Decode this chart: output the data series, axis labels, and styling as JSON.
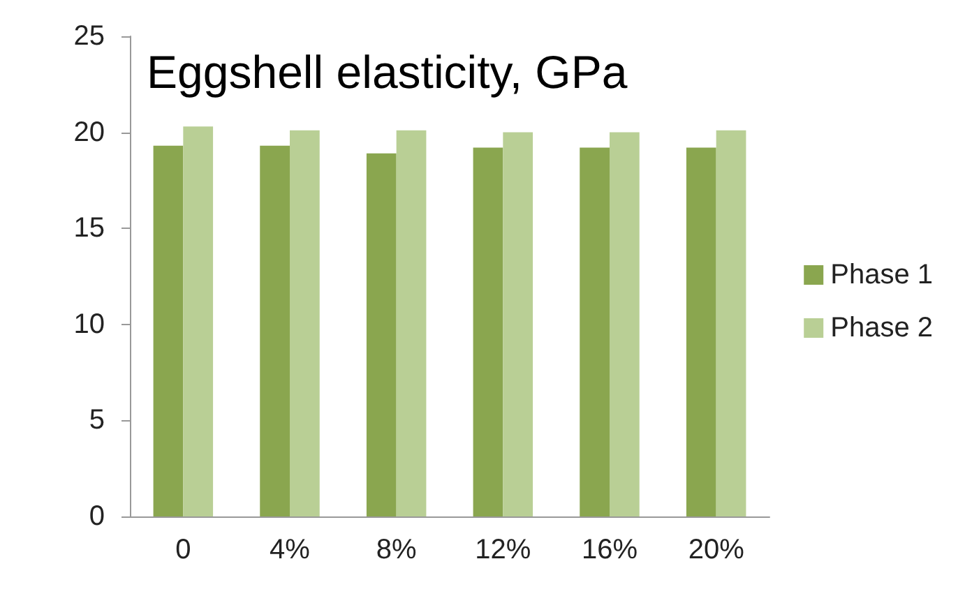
{
  "chart_data": {
    "type": "bar",
    "title": "Eggshell elasticity, GPa",
    "categories": [
      "0",
      "4%",
      "8%",
      "12%",
      "16%",
      "20%"
    ],
    "series": [
      {
        "name": "Phase 1",
        "color": "#8aa64f",
        "values": [
          19.3,
          19.3,
          18.9,
          19.2,
          19.2,
          19.2
        ]
      },
      {
        "name": "Phase 2",
        "color": "#b9cf95",
        "values": [
          20.3,
          20.1,
          20.1,
          20.0,
          20.0,
          20.1
        ]
      }
    ],
    "ylim": [
      0,
      25
    ],
    "yticks": [
      0,
      5,
      10,
      15,
      20,
      25
    ],
    "grid": false,
    "legend": "right"
  }
}
